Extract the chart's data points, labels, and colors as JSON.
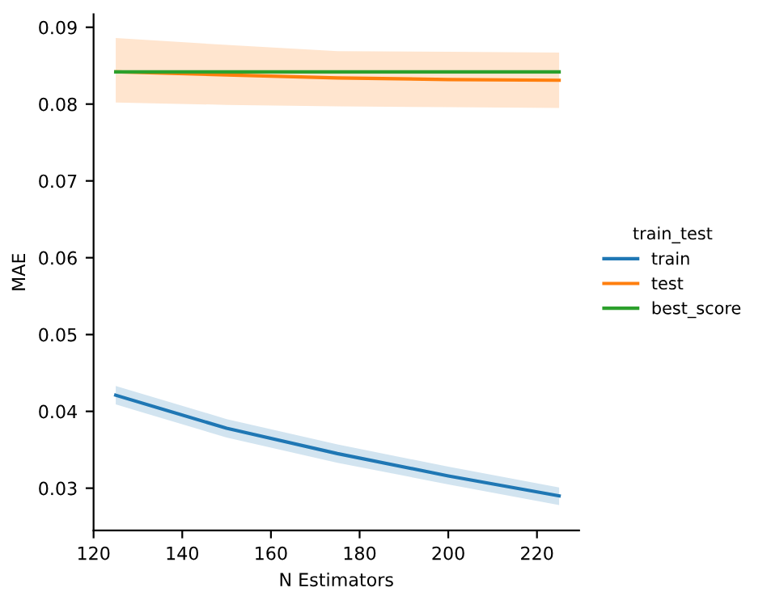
{
  "chart_data": {
    "type": "line",
    "xlabel": "N Estimators",
    "ylabel": "MAE",
    "legend_title": "train_test",
    "x": [
      125,
      150,
      175,
      200,
      225
    ],
    "series": [
      {
        "name": "train",
        "color": "#1f77b4",
        "values": [
          0.0421,
          0.0378,
          0.0345,
          0.0316,
          0.029
        ],
        "lower": [
          0.0409,
          0.0366,
          0.0333,
          0.0305,
          0.0278
        ],
        "upper": [
          0.0433,
          0.039,
          0.0357,
          0.0328,
          0.0301
        ]
      },
      {
        "name": "test",
        "color": "#ff7f0e",
        "values": [
          0.0842,
          0.0838,
          0.0834,
          0.0832,
          0.0831
        ],
        "lower": [
          0.0802,
          0.0799,
          0.0797,
          0.0796,
          0.0795
        ],
        "upper": [
          0.0886,
          0.0877,
          0.0869,
          0.0868,
          0.0867
        ]
      },
      {
        "name": "best_score",
        "color": "#2ca02c",
        "values": [
          0.0842,
          0.0842,
          0.0842,
          0.0842,
          0.0842
        ]
      }
    ],
    "xlim": [
      120,
      229.5
    ],
    "xticks": [
      120,
      140,
      160,
      180,
      200,
      220
    ],
    "ylim": [
      0.0245,
      0.0917
    ],
    "yticks": [
      {
        "value": 0.03,
        "label": "0.03"
      },
      {
        "value": 0.04,
        "label": "0.04"
      },
      {
        "value": 0.05,
        "label": "0.05"
      },
      {
        "value": 0.06,
        "label": "0.06"
      },
      {
        "value": 0.07,
        "label": "0.07"
      },
      {
        "value": 0.08,
        "label": "0.08"
      },
      {
        "value": 0.09,
        "label": "0.09"
      }
    ],
    "legend": "right",
    "grid": false,
    "marker": "none",
    "line_style": "solid"
  }
}
